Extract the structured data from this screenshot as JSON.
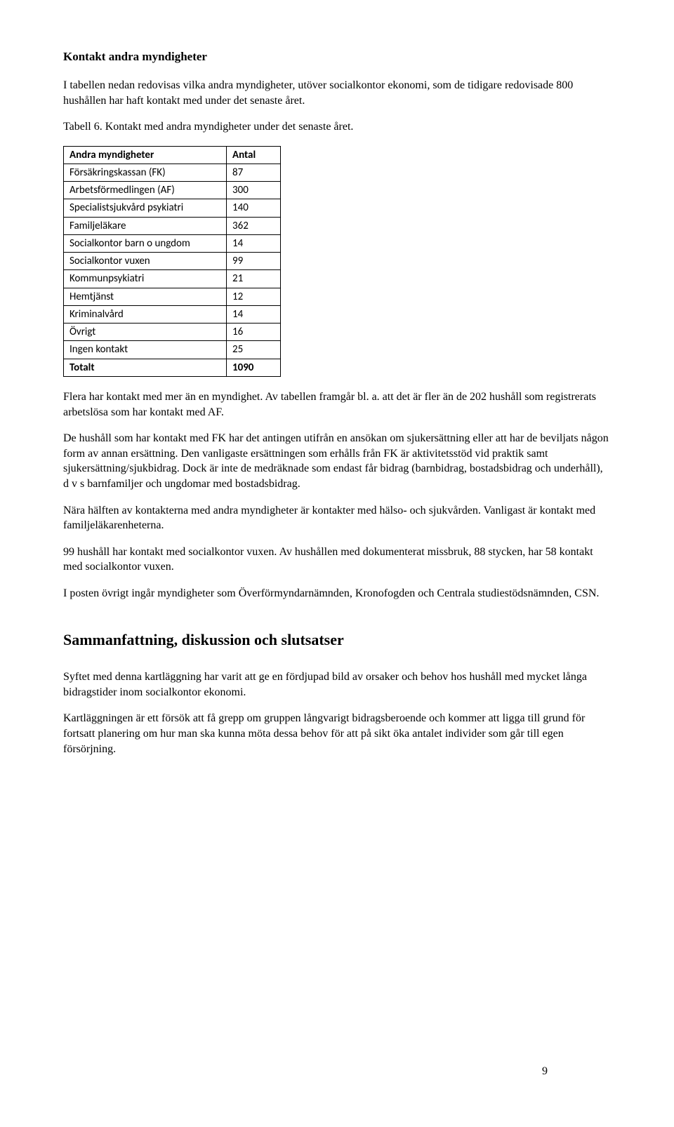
{
  "heading1": "Kontakt andra myndigheter",
  "intro": "I tabellen nedan redovisas vilka andra myndigheter, utöver socialkontor ekonomi, som de tidigare redovisade 800 hushållen har haft kontakt med under det senaste året.",
  "tableCaption": "Tabell 6. Kontakt med andra myndigheter under det senaste året.",
  "table": {
    "header": {
      "label": "Andra myndigheter",
      "value": "Antal"
    },
    "rows": [
      {
        "label": "Försäkringskassan (FK)",
        "value": "87"
      },
      {
        "label": "Arbetsförmedlingen (AF)",
        "value": "300"
      },
      {
        "label": "Specialistsjukvård psykiatri",
        "value": "140"
      },
      {
        "label": "Familjeläkare",
        "value": "362"
      },
      {
        "label": "Socialkontor barn o ungdom",
        "value": "14"
      },
      {
        "label": "Socialkontor vuxen",
        "value": "99"
      },
      {
        "label": "Kommunpsykiatri",
        "value": "21"
      },
      {
        "label": "Hemtjänst",
        "value": "12"
      },
      {
        "label": "Kriminalvård",
        "value": "14"
      },
      {
        "label": "Övrigt",
        "value": "16"
      },
      {
        "label": "Ingen kontakt",
        "value": "25"
      }
    ],
    "total": {
      "label": "Totalt",
      "value": "1090"
    }
  },
  "para1": "Flera har kontakt med mer än en myndighet. Av tabellen framgår bl. a. att det är fler än de 202 hushåll som registrerats arbetslösa som har kontakt med AF.",
  "para2": "De hushåll som har kontakt med FK har det antingen utifrån en ansökan om sjukersättning eller att har de beviljats någon form av annan ersättning. Den vanligaste ersättningen som erhålls från FK är aktivitetsstöd vid praktik samt sjukersättning/sjukbidrag. Dock är inte de medräknade som endast får bidrag (barnbidrag, bostadsbidrag och underhåll), d v s barnfamiljer och ungdomar med bostadsbidrag.",
  "para3": "Nära hälften av kontakterna med andra myndigheter är kontakter med hälso- och sjukvården. Vanligast är kontakt med familjeläkarenheterna.",
  "para4": "99 hushåll har kontakt med socialkontor vuxen. Av hushållen med dokumenterat missbruk, 88 stycken, har 58 kontakt med socialkontor vuxen.",
  "para5": "I posten övrigt ingår myndigheter som Överförmyndarnämnden, Kronofogden och Centrala studiestödsnämnden, CSN.",
  "heading2": "Sammanfattning, diskussion och slutsatser",
  "para6": "Syftet med denna kartläggning har varit att ge en fördjupad bild av orsaker och behov hos hushåll med mycket långa bidragstider inom socialkontor ekonomi.",
  "para7": "Kartläggningen är ett försök att få grepp om gruppen långvarigt bidragsberoende och kommer att ligga till grund för fortsatt planering om hur man ska kunna möta dessa behov för att på sikt öka antalet individer som går till egen försörjning.",
  "pageNumber": "9"
}
